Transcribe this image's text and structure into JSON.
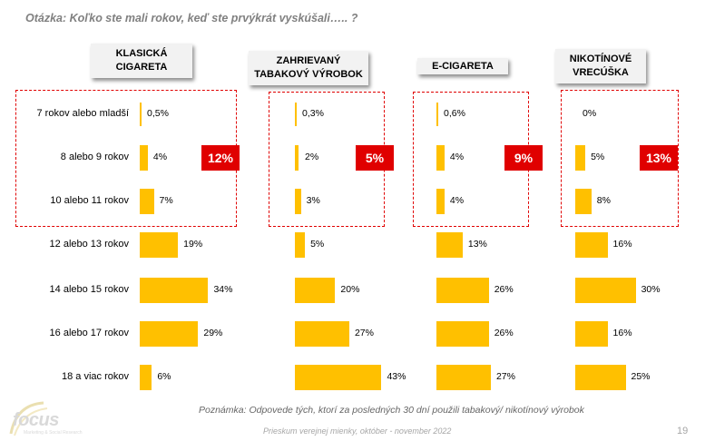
{
  "question": "Otázka: Koľko ste mali rokov, keď ste prvýkrát vyskúšali….. ?",
  "note": "Poznámka: Odpovede tých, ktorí za posledných 30 dní použili tabakový/ nikotínový výrobok",
  "footer": "Prieskum verejnej mienky, október - november 2022",
  "page_number": "19",
  "logo_text": "focus",
  "logo_sub": "Marketing & Social Research",
  "colors": {
    "bar": "#ffc000",
    "badge": "#e00000",
    "dashed_box": "#e00000",
    "header_bg": "#f2f2f2"
  },
  "chart_data": {
    "type": "bar",
    "orientation": "horizontal",
    "categories": [
      "7 rokov alebo mladší",
      "8 alebo 9 rokov",
      "10 alebo 11 rokov",
      "12 alebo 13 rokov",
      "14 alebo 15 rokov",
      "16 alebo 17 rokov",
      "18 a viac rokov"
    ],
    "panels": [
      {
        "title": "KLASICKÁ\nCIGARETA",
        "values": [
          0.5,
          4,
          7,
          19,
          34,
          29,
          6
        ],
        "labels": [
          "0,5%",
          "4%",
          "7%",
          "19%",
          "34%",
          "29%",
          "6%"
        ],
        "highlight_label": "12%"
      },
      {
        "title": "ZAHRIEVANÝ\nTABAKOVÝ VÝROBOK",
        "values": [
          0.3,
          2,
          3,
          5,
          20,
          27,
          43
        ],
        "labels": [
          "0,3%",
          "2%",
          "3%",
          "5%",
          "20%",
          "27%",
          "43%"
        ],
        "highlight_label": "5%"
      },
      {
        "title": "E-CIGARETA",
        "values": [
          0.6,
          4,
          4,
          13,
          26,
          26,
          27
        ],
        "labels": [
          "0,6%",
          "4%",
          "4%",
          "13%",
          "26%",
          "26%",
          "27%"
        ],
        "highlight_label": "9%"
      },
      {
        "title": "NIKOTÍNOVÉ\nVRECÚŠKA",
        "values": [
          0,
          5,
          8,
          16,
          30,
          16,
          25
        ],
        "labels": [
          "0%",
          "5%",
          "8%",
          "16%",
          "30%",
          "16%",
          "25%"
        ],
        "highlight_label": "13%"
      }
    ]
  }
}
